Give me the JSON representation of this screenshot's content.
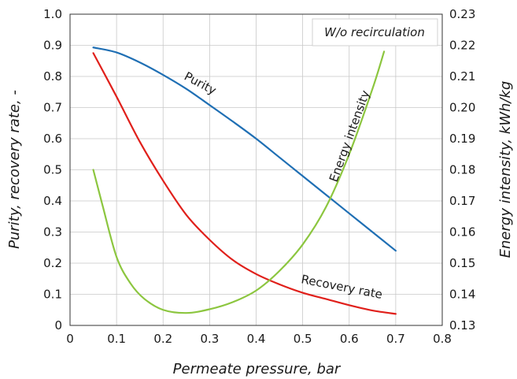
{
  "chart_data": {
    "type": "line",
    "annotation": "W/o recirculation",
    "xlabel": "Permeate pressure, bar",
    "ylabel": "Purity, recovery rate, -",
    "y2label": "Energy intensity, kWh/kg",
    "xlim": [
      0,
      0.8
    ],
    "ylim": [
      0,
      1.0
    ],
    "y2lim": [
      0.13,
      0.23
    ],
    "xticks": [
      "0",
      "0.1",
      "0.2",
      "0.3",
      "0.4",
      "0.5",
      "0.6",
      "0.7",
      "0.8"
    ],
    "yticks": [
      "0",
      "0.1",
      "0.2",
      "0.3",
      "0.4",
      "0.5",
      "0.6",
      "0.7",
      "0.8",
      "0.9",
      "1.0"
    ],
    "y2ticks": [
      "0.13",
      "0.14",
      "0.15",
      "0.16",
      "0.17",
      "0.18",
      "0.19",
      "0.20",
      "0.21",
      "0.22",
      "0.23"
    ],
    "grid": true,
    "series": [
      {
        "name": "Purity",
        "axis": "left",
        "color": "#1f6fb4",
        "x": [
          0.05,
          0.1,
          0.15,
          0.2,
          0.25,
          0.3,
          0.35,
          0.4,
          0.45,
          0.5,
          0.55,
          0.6,
          0.65,
          0.7
        ],
        "y": [
          0.893,
          0.877,
          0.845,
          0.805,
          0.76,
          0.708,
          0.655,
          0.6,
          0.54,
          0.48,
          0.42,
          0.36,
          0.3,
          0.24
        ]
      },
      {
        "name": "Recovery rate",
        "axis": "left",
        "color": "#e0201b",
        "x": [
          0.05,
          0.1,
          0.15,
          0.2,
          0.25,
          0.3,
          0.35,
          0.4,
          0.45,
          0.5,
          0.55,
          0.6,
          0.65,
          0.7
        ],
        "y": [
          0.875,
          0.735,
          0.59,
          0.465,
          0.355,
          0.275,
          0.21,
          0.165,
          0.132,
          0.105,
          0.085,
          0.065,
          0.048,
          0.037
        ]
      },
      {
        "name": "Energy intensity",
        "axis": "right",
        "color": "#8cc63f",
        "x": [
          0.05,
          0.07,
          0.1,
          0.13,
          0.16,
          0.2,
          0.25,
          0.3,
          0.35,
          0.4,
          0.45,
          0.5,
          0.55,
          0.6,
          0.65,
          0.675
        ],
        "y": [
          0.18,
          0.1685,
          0.152,
          0.1435,
          0.1385,
          0.135,
          0.134,
          0.1352,
          0.1375,
          0.1412,
          0.1475,
          0.156,
          0.168,
          0.185,
          0.206,
          0.218
        ]
      }
    ]
  }
}
